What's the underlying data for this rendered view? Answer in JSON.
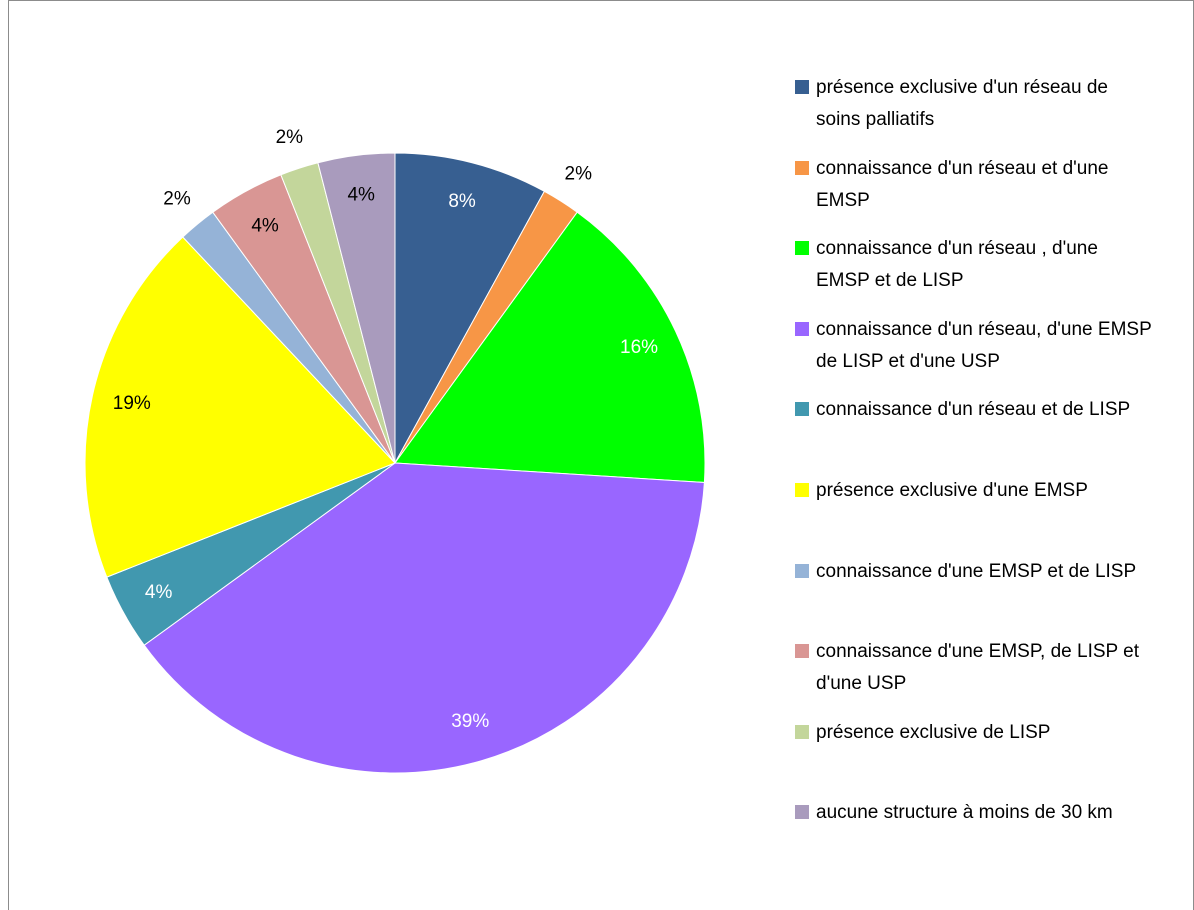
{
  "chart_data": {
    "type": "pie",
    "categories": [
      "présence exclusive d'un réseau de soins palliatifs",
      "connaissance d'un réseau et d'une EMSP",
      "connaissance d'un réseau , d'une EMSP et de LISP",
      "connaissance d'un réseau, d'une EMSP de LISP et d'une USP",
      "connaissance d'un réseau et de LISP",
      "présence exclusive d'une EMSP",
      "connaissance d'une EMSP et de LISP",
      "connaissance d'une EMSP, de LISP et d'une USP",
      "présence exclusive de LISP",
      "aucune structure à moins de 30 km"
    ],
    "values": [
      8,
      2,
      16,
      39,
      4,
      19,
      2,
      4,
      2,
      4
    ],
    "value_labels": [
      "8%",
      "2%",
      "16%",
      "39%",
      "4%",
      "19%",
      "2%",
      "4%",
      "2%",
      "4%"
    ],
    "colors": [
      "#375f91",
      "#f79646",
      "#00ff00",
      "#9966ff",
      "#4198af",
      "#ffff00",
      "#95b3d7",
      "#d99694",
      "#c3d69b",
      "#a99bbd"
    ],
    "legend": "right"
  }
}
